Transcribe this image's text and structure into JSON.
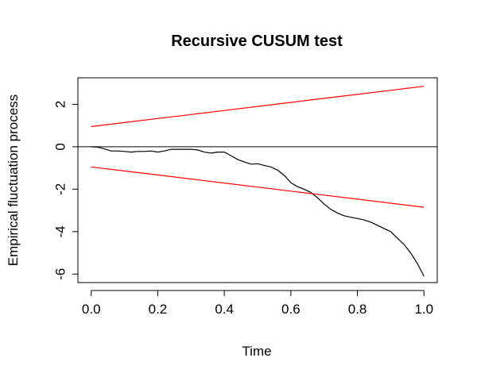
{
  "chart_data": {
    "type": "line",
    "title": "Recursive CUSUM test",
    "xlabel": "Time",
    "ylabel": "Empirical fluctuation process",
    "xlim": [
      -0.04,
      1.04
    ],
    "ylim": [
      -6.4,
      3.25
    ],
    "xticks": [
      0.0,
      0.2,
      0.4,
      0.6,
      0.8,
      1.0
    ],
    "xtick_labels": [
      "0.0",
      "0.2",
      "0.4",
      "0.6",
      "0.8",
      "1.0"
    ],
    "yticks": [
      -6,
      -4,
      -2,
      0,
      2
    ],
    "ytick_labels": [
      "-6",
      "-4",
      "-2",
      "0",
      "2"
    ],
    "reference_line": 0,
    "grid": false,
    "legend": "none",
    "series": [
      {
        "color": "#000000",
        "x": [
          0.0,
          0.02,
          0.04,
          0.06,
          0.08,
          0.1,
          0.12,
          0.14,
          0.16,
          0.18,
          0.2,
          0.22,
          0.24,
          0.26,
          0.28,
          0.3,
          0.32,
          0.34,
          0.36,
          0.38,
          0.4,
          0.42,
          0.44,
          0.46,
          0.48,
          0.5,
          0.52,
          0.54,
          0.56,
          0.58,
          0.6,
          0.62,
          0.64,
          0.66,
          0.68,
          0.7,
          0.72,
          0.74,
          0.76,
          0.78,
          0.8,
          0.82,
          0.84,
          0.86,
          0.88,
          0.9,
          0.92,
          0.94,
          0.96,
          0.98,
          1.0
        ],
        "values": [
          0.0,
          -0.02,
          -0.1,
          -0.2,
          -0.2,
          -0.22,
          -0.25,
          -0.22,
          -0.22,
          -0.2,
          -0.25,
          -0.2,
          -0.12,
          -0.12,
          -0.12,
          -0.12,
          -0.15,
          -0.25,
          -0.3,
          -0.25,
          -0.25,
          -0.42,
          -0.6,
          -0.72,
          -0.82,
          -0.8,
          -0.88,
          -0.95,
          -1.1,
          -1.35,
          -1.7,
          -1.88,
          -2.0,
          -2.15,
          -2.4,
          -2.7,
          -2.95,
          -3.12,
          -3.25,
          -3.32,
          -3.38,
          -3.45,
          -3.55,
          -3.7,
          -3.85,
          -4.0,
          -4.3,
          -4.6,
          -5.0,
          -5.5,
          -6.1
        ]
      },
      {
        "color": "#ff0000",
        "x": [
          0.0,
          0.1,
          0.2,
          0.3,
          0.4,
          0.5,
          0.6,
          0.7,
          0.8,
          0.9,
          1.0
        ],
        "values": [
          0.95,
          1.14,
          1.33,
          1.52,
          1.71,
          1.9,
          2.09,
          2.28,
          2.47,
          2.66,
          2.85
        ]
      },
      {
        "color": "#ff0000",
        "x": [
          0.0,
          0.1,
          0.2,
          0.3,
          0.4,
          0.5,
          0.6,
          0.7,
          0.8,
          0.9,
          1.0
        ],
        "values": [
          -0.95,
          -1.14,
          -1.33,
          -1.52,
          -1.71,
          -1.9,
          -2.09,
          -2.28,
          -2.47,
          -2.66,
          -2.85
        ]
      }
    ]
  }
}
